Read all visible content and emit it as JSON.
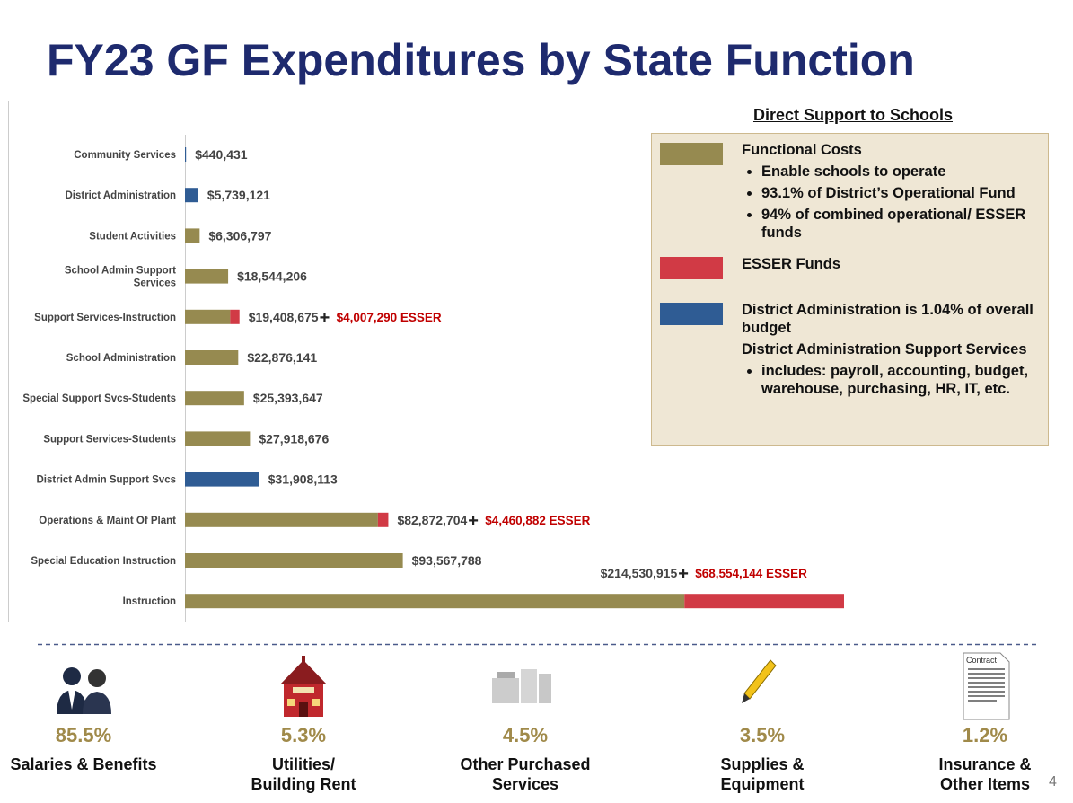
{
  "header": {
    "title": "FY23 GF Expenditures by State Function",
    "page_number": "4"
  },
  "chart_data": {
    "type": "bar",
    "orientation": "horizontal",
    "stacked": true,
    "categories": [
      "Community Services",
      "District Administration",
      "Student Activities",
      "School Admin Support\nServices",
      "Support Services-Instruction",
      "School Administration",
      "Special Support Svcs-Students",
      "Support Services-Students",
      "District Admin Support Svcs",
      "Operations & Maint Of Plant",
      "Special Education Instruction",
      "Instruction"
    ],
    "series": [
      {
        "color": "#968a50",
        "values": [
          null,
          null,
          6306797,
          18544206,
          19408675,
          22876141,
          25393647,
          27918676,
          null,
          82872704,
          93567788,
          214530915
        ],
        "value_labels": [
          null,
          null,
          "$6,306,797",
          "$18,544,206",
          "$19,408,675",
          "$22,876,141",
          "$25,393,647",
          "$27,918,676",
          null,
          "$82,872,704",
          "$93,567,788",
          "$214,530,915"
        ]
      },
      {
        "color": "#2f5c94",
        "values": [
          440431,
          5739121,
          null,
          null,
          null,
          null,
          null,
          null,
          31908113,
          null,
          null,
          null
        ],
        "value_labels": [
          "$440,431",
          "$5,739,121",
          null,
          null,
          null,
          null,
          null,
          null,
          "$31,908,113",
          null,
          null,
          null
        ]
      },
      {
        "color": "#d13a45",
        "values": [
          null,
          null,
          null,
          null,
          4007290,
          null,
          null,
          null,
          null,
          4460882,
          null,
          68554144
        ],
        "value_labels": [
          null,
          null,
          null,
          null,
          "$4,007,290 ESSER",
          null,
          null,
          null,
          null,
          "$4,460,882 ESSER",
          null,
          "$68,554,144 ESSER"
        ]
      }
    ],
    "plus_sign": "+"
  },
  "legend": {
    "heading": "Direct Support to Schools",
    "items": [
      {
        "color": "#968a50",
        "title": "Functional Costs",
        "bullets": [
          "Enable schools to operate",
          "93.1% of District’s Operational Fund",
          "94% of combined operational/ ESSER funds"
        ]
      },
      {
        "color": "#d13a45",
        "title": "ESSER Funds",
        "bullets": []
      },
      {
        "color": "#2f5c94",
        "title": "District Administration is 1.04% of overall budget",
        "subtitle": "District Administration Support Services",
        "bullets": [
          "includes: payroll, accounting, budget, warehouse, purchasing, HR, IT, etc."
        ]
      }
    ]
  },
  "breakdown": [
    {
      "percent": "85.5%",
      "label": "Salaries & Benefits"
    },
    {
      "percent": "5.3%",
      "label": "Utilities/\nBuilding Rent"
    },
    {
      "percent": "4.5%",
      "label": "Other Purchased\nServices"
    },
    {
      "percent": "3.5%",
      "label": "Supplies &\nEquipment"
    },
    {
      "percent": "1.2%",
      "label": "Insurance &\nOther Items"
    }
  ]
}
